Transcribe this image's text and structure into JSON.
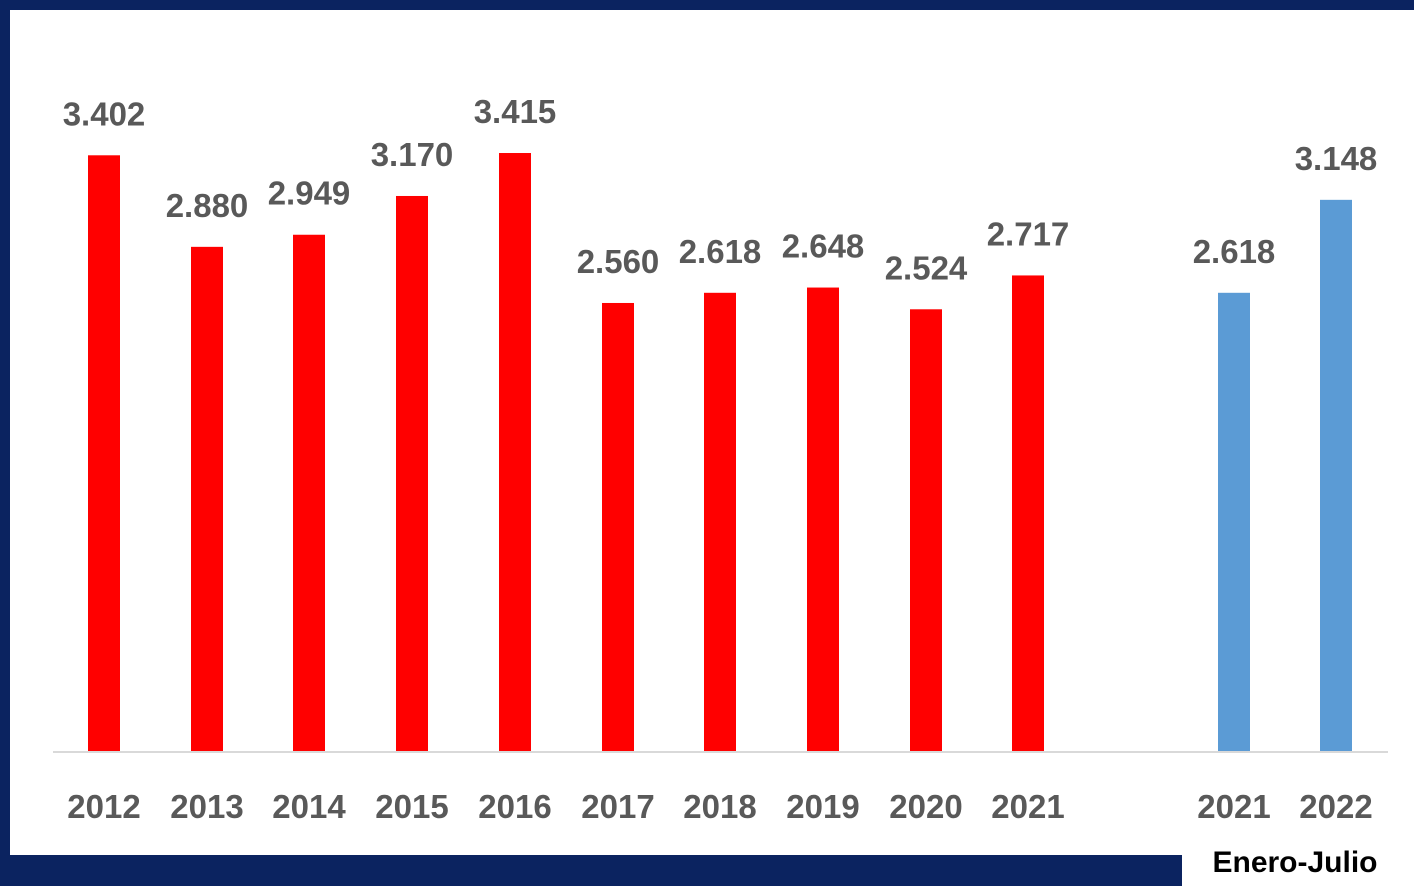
{
  "chart_data": {
    "type": "bar",
    "categories": [
      "2012",
      "2013",
      "2014",
      "2015",
      "2016",
      "2017",
      "2018",
      "2019",
      "2020",
      "2021",
      "2021",
      "2022"
    ],
    "values": [
      3402,
      2880,
      2949,
      3170,
      3415,
      2560,
      2618,
      2648,
      2524,
      2717,
      2618,
      3148
    ],
    "value_labels": [
      "3.402",
      "2.880",
      "2.949",
      "3.170",
      "3.415",
      "2.560",
      "2.618",
      "2.648",
      "2.524",
      "2.717",
      "2.618",
      "3.148"
    ],
    "series": [
      {
        "values": [
          3402,
          2880,
          2949,
          3170,
          3415,
          2560,
          2618,
          2648,
          2524,
          2717,
          null,
          null
        ],
        "color": "#ff0000"
      },
      {
        "values": [
          null,
          null,
          null,
          null,
          null,
          null,
          null,
          null,
          null,
          null,
          2618,
          3148
        ],
        "color": "#5b9bd5"
      }
    ],
    "group_label": "Enero-Julio",
    "title": "",
    "xlabel": "",
    "ylabel": "",
    "ylim": [
      0,
      3500
    ],
    "grid": false,
    "legend": "none"
  },
  "colors": {
    "frame": "#0b2360",
    "panel": "#ffffff",
    "annual_bars": "#ff0000",
    "partial_bars": "#5b9bd5",
    "label_text": "#595959",
    "axis_line": "#d9d9d9"
  }
}
